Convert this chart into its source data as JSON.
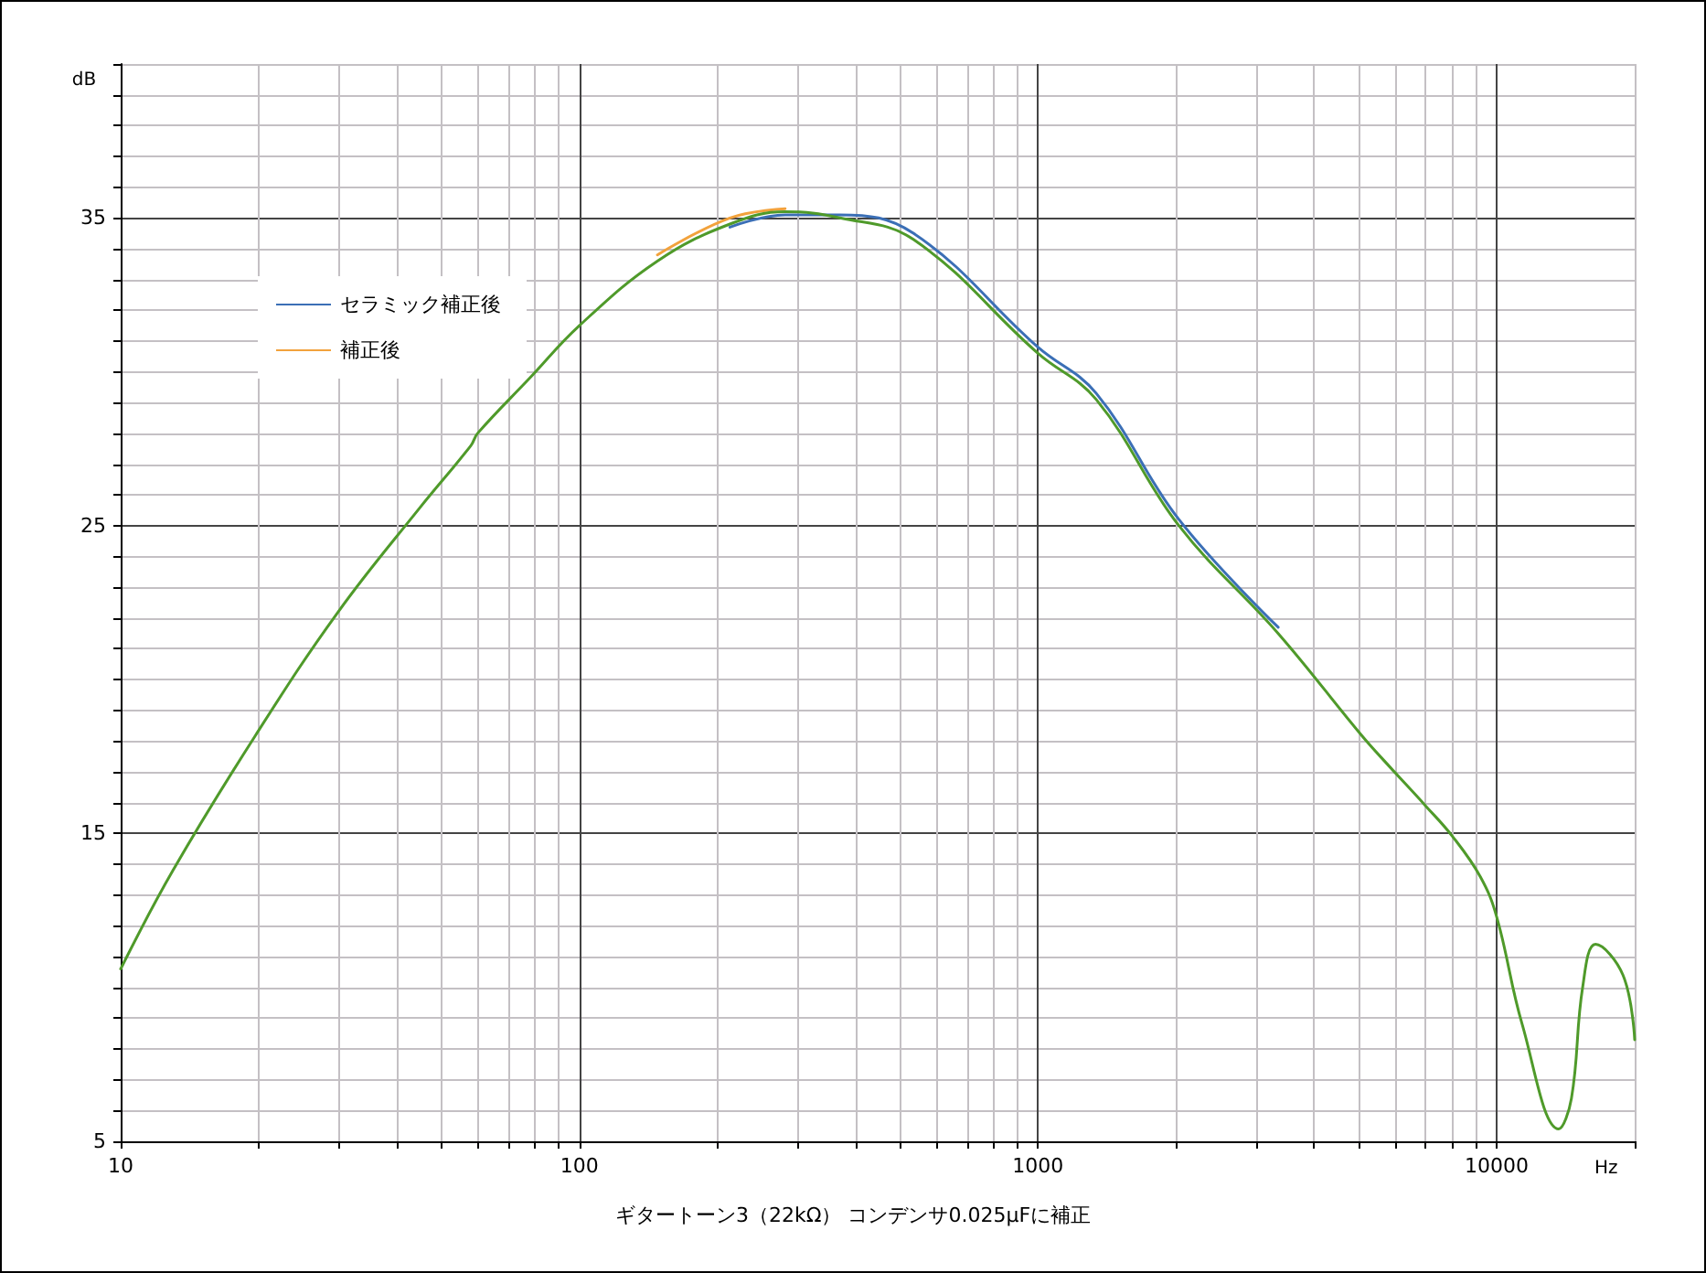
{
  "chart_data": {
    "type": "line",
    "title": "ギタートーン3（22kΩ） コンデンサ0.025μFに補正",
    "xlabel": "Hz",
    "ylabel": "dB",
    "x": [
      10,
      13,
      19.7,
      29.8,
      45,
      58,
      60,
      78,
      100,
      148,
      213,
      281,
      370,
      535,
      1000,
      1340,
      2030,
      3340,
      5070,
      5820,
      7000,
      8020,
      9210,
      10000,
      11370,
      13660,
      14560,
      15400,
      16430,
      18860,
      20000
    ],
    "series": [
      {
        "color": "#4f9a2a",
        "values": [
          10.6,
          13.8,
          18.2,
          22.2,
          25.6,
          27.6,
          28.0,
          29.8,
          31.5,
          33.6,
          34.8,
          35.2,
          35.0,
          34.3,
          30.6,
          29.1,
          25.0,
          21.5,
          18.2,
          17.2,
          15.9,
          14.9,
          13.6,
          12.3,
          8.8,
          5.4,
          6.4,
          10.0,
          11.4,
          10.4,
          8.3
        ]
      },
      {
        "name": "セラミック補正後",
        "color": "#3b6fb6",
        "values": [
          null,
          null,
          null,
          null,
          null,
          null,
          null,
          null,
          null,
          null,
          34.7,
          35.1,
          35.1,
          34.5,
          30.8,
          29.3,
          25.2,
          21.7,
          null,
          null,
          null,
          null,
          null,
          null,
          null,
          null,
          null,
          null,
          null,
          null,
          null
        ]
      },
      {
        "name": "補正後",
        "color": "#f2a23c",
        "values": [
          null,
          null,
          null,
          null,
          null,
          null,
          null,
          null,
          null,
          33.8,
          35.0,
          35.3,
          null,
          null,
          null,
          null,
          null,
          null,
          null,
          null,
          null,
          null,
          null,
          null,
          null,
          null,
          null,
          null,
          null,
          null,
          null
        ]
      }
    ],
    "log": "x",
    "xlim": [
      10,
      20000
    ],
    "ylim": [
      5,
      40
    ],
    "xticks": [
      10,
      {
        "value": 20,
        "label": null
      },
      {
        "value": 30,
        "label": null
      },
      {
        "value": 40,
        "label": null
      },
      {
        "value": 50,
        "label": null
      },
      {
        "value": 60,
        "label": null
      },
      {
        "value": 70,
        "label": null
      },
      {
        "value": 80,
        "label": null
      },
      {
        "value": 90,
        "label": null
      },
      100,
      {
        "value": 200,
        "label": null
      },
      {
        "value": 300,
        "label": null
      },
      {
        "value": 400,
        "label": null
      },
      {
        "value": 500,
        "label": null
      },
      {
        "value": 600,
        "label": null
      },
      {
        "value": 700,
        "label": null
      },
      {
        "value": 800,
        "label": null
      },
      {
        "value": 900,
        "label": null
      },
      1000,
      {
        "value": 2000,
        "label": null
      },
      {
        "value": 3000,
        "label": null
      },
      {
        "value": 4000,
        "label": null
      },
      {
        "value": 5000,
        "label": null
      },
      {
        "value": 6000,
        "label": null
      },
      {
        "value": 7000,
        "label": null
      },
      {
        "value": 8000,
        "label": null
      },
      {
        "value": 9000,
        "label": null
      },
      10000,
      {
        "value": 20000,
        "label": null
      }
    ],
    "yticks": [
      5,
      {
        "value": 6,
        "label": null
      },
      {
        "value": 7,
        "label": null
      },
      {
        "value": 8,
        "label": null
      },
      {
        "value": 9,
        "label": null
      },
      {
        "value": 10,
        "label": null
      },
      {
        "value": 11,
        "label": null
      },
      {
        "value": 12,
        "label": null
      },
      {
        "value": 13,
        "label": null
      },
      {
        "value": 14,
        "label": null
      },
      15,
      {
        "value": 16,
        "label": null
      },
      {
        "value": 17,
        "label": null
      },
      {
        "value": 18,
        "label": null
      },
      {
        "value": 19,
        "label": null
      },
      {
        "value": 20,
        "label": null
      },
      {
        "value": 21,
        "label": null
      },
      {
        "value": 22,
        "label": null
      },
      {
        "value": 23,
        "label": null
      },
      {
        "value": 24,
        "label": null
      },
      25,
      {
        "value": 26,
        "label": null
      },
      {
        "value": 27,
        "label": null
      },
      {
        "value": 28,
        "label": null
      },
      {
        "value": 29,
        "label": null
      },
      {
        "value": 30,
        "label": null
      },
      {
        "value": 31,
        "label": null
      },
      {
        "value": 32,
        "label": null
      },
      {
        "value": 33,
        "label": null
      },
      {
        "value": 34,
        "label": null
      },
      35,
      {
        "value": 36,
        "label": null
      },
      {
        "value": 37,
        "label": null
      },
      {
        "value": 38,
        "label": null
      },
      {
        "value": 39,
        "label": null
      },
      {
        "value": 40,
        "label": null
      }
    ],
    "grid": true,
    "legend": "top left",
    "marker": "none",
    "line_style": "solid"
  }
}
